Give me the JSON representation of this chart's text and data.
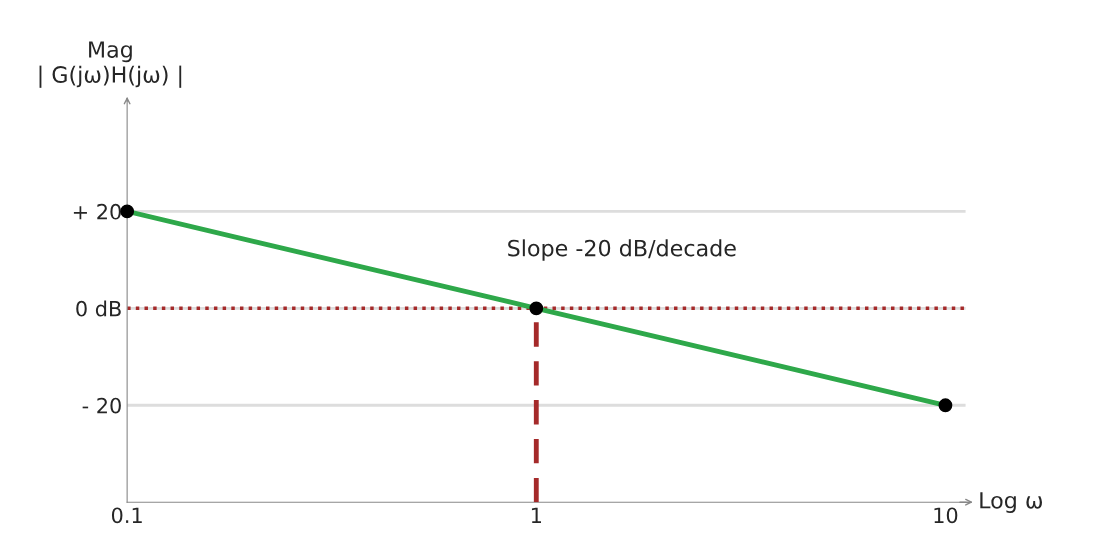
{
  "chart_data": {
    "type": "line",
    "xlabel": "Log ω",
    "ylabel": "Mag\n| G(jω)H(jω) |",
    "log": "x",
    "xlim": [
      0.1,
      11.2
    ],
    "ylim": [
      -40,
      43
    ],
    "xticks": [
      0.1,
      1,
      10
    ],
    "yticks": [
      {
        "value": 20,
        "label": "+ 20"
      },
      {
        "value": 0,
        "label": "0 dB"
      },
      {
        "value": -20,
        "label": "- 20"
      }
    ],
    "grid": "y",
    "series": [
      {
        "x": [
          0.1,
          1,
          10
        ],
        "values": [
          20,
          0,
          -20
        ],
        "color": "#2ea84a",
        "marker": "circle",
        "line_style": "solid"
      },
      {
        "x": [
          1,
          1
        ],
        "values": [
          -40,
          0
        ],
        "color": "#a52a2a",
        "marker": "none",
        "line_style": "dashed"
      }
    ],
    "ref_lines": [
      {
        "axis": "y",
        "value": 0,
        "color": "#a52a2a",
        "line_style": "dotted"
      }
    ],
    "annotations": [
      "Slope -20 dB/decade"
    ]
  }
}
